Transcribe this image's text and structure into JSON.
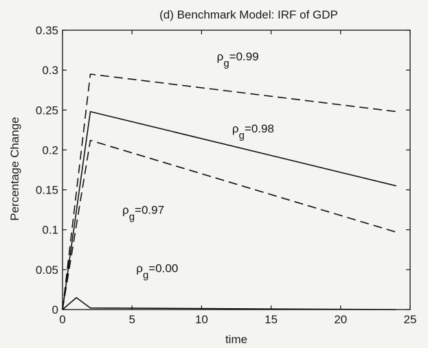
{
  "chart_data": {
    "type": "line",
    "title": "(d) Benchmark Model:   IRF of GDP",
    "xlabel": "time",
    "ylabel": "Percentage Change",
    "xlim": [
      0,
      25
    ],
    "ylim": [
      0,
      0.35
    ],
    "xticks": [
      0,
      5,
      10,
      15,
      20,
      25
    ],
    "xtick_labels": [
      "0",
      "5",
      "10",
      "15",
      "20",
      "25"
    ],
    "yticks": [
      0,
      0.05,
      0.1,
      0.15,
      0.2,
      0.25,
      0.3,
      0.35
    ],
    "ytick_labels": [
      "0",
      "0.05",
      "0.1",
      "0.15",
      "0.2",
      "0.25",
      "0.3",
      "0.35"
    ],
    "grid": false,
    "legend": "none",
    "series": [
      {
        "style": "dashed",
        "x": [
          0,
          2,
          24
        ],
        "values": [
          0,
          0.295,
          0.248
        ]
      },
      {
        "style": "solid",
        "x": [
          0,
          2,
          24
        ],
        "values": [
          0,
          0.248,
          0.155
        ]
      },
      {
        "style": "dashed",
        "x": [
          0,
          2,
          24
        ],
        "values": [
          0,
          0.212,
          0.097
        ]
      },
      {
        "style": "solid",
        "x": [
          0,
          1,
          2,
          24
        ],
        "values": [
          0,
          0.015,
          0.002,
          0.0
        ]
      }
    ],
    "annotations": [
      {
        "rho": "ρ",
        "sub": "g",
        "text": "=0.99",
        "x": 11.1,
        "y": 0.312
      },
      {
        "rho": "ρ",
        "sub": "g",
        "text": "=0.98",
        "x": 12.2,
        "y": 0.222
      },
      {
        "rho": "ρ",
        "sub": "g",
        "text": "=0.97",
        "x": 4.3,
        "y": 0.12
      },
      {
        "rho": "ρ",
        "sub": "g",
        "text": "=0.00",
        "x": 5.3,
        "y": 0.047
      }
    ]
  }
}
